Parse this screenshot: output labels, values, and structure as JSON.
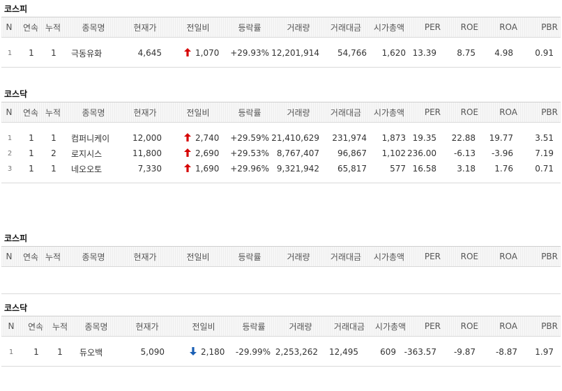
{
  "sections": [
    {
      "title": "코스피",
      "headers": [
        "N",
        "연속",
        "누적",
        "종목명",
        "현재가",
        "전일비",
        "등락률",
        "거래량",
        "거래대금",
        "시가총액",
        "PER",
        "ROE",
        "ROA",
        "PBR"
      ],
      "rows": [
        {
          "n": "1",
          "streak": "1",
          "cumulative": "1",
          "name": "극동유화",
          "price": "4,645",
          "direction": "up",
          "change": "1,070",
          "rate": "+29.93%",
          "volume": "12,201,914",
          "amount": "54,766",
          "market_cap": "1,620",
          "per": "13.39",
          "roe": "8.75",
          "roa": "4.98",
          "pbr": "0.91"
        }
      ]
    },
    {
      "title": "코스닥",
      "headers": [
        "N",
        "연속",
        "누적",
        "종목명",
        "현재가",
        "전일비",
        "등락률",
        "거래량",
        "거래대금",
        "시가총액",
        "PER",
        "ROE",
        "ROA",
        "PBR"
      ],
      "rows": [
        {
          "n": "1",
          "streak": "1",
          "cumulative": "1",
          "name": "컴퍼니케이",
          "price": "12,000",
          "direction": "up",
          "change": "2,740",
          "rate": "+29.59%",
          "volume": "21,410,629",
          "amount": "231,974",
          "market_cap": "1,873",
          "per": "19.35",
          "roe": "22.88",
          "roa": "19.77",
          "pbr": "3.51"
        },
        {
          "n": "2",
          "streak": "1",
          "cumulative": "2",
          "name": "로지시스",
          "price": "11,800",
          "direction": "up",
          "change": "2,690",
          "rate": "+29.53%",
          "volume": "8,767,407",
          "amount": "96,867",
          "market_cap": "1,102",
          "per": "236.00",
          "roe": "-6.13",
          "roa": "-3.96",
          "pbr": "7.19"
        },
        {
          "n": "3",
          "streak": "1",
          "cumulative": "1",
          "name": "네오오토",
          "price": "7,330",
          "direction": "up",
          "change": "1,690",
          "rate": "+29.96%",
          "volume": "9,321,942",
          "amount": "65,817",
          "market_cap": "577",
          "per": "16.58",
          "roe": "3.18",
          "roa": "1.76",
          "pbr": "0.71"
        }
      ]
    },
    {
      "title": "코스피",
      "headers": [
        "N",
        "연속",
        "누적",
        "종목명",
        "현재가",
        "전일비",
        "등락률",
        "거래량",
        "거래대금",
        "시가총액",
        "PER",
        "ROE",
        "ROA",
        "PBR"
      ],
      "rows": []
    },
    {
      "title": "코스닥",
      "headers": [
        "N",
        "연속",
        "누적",
        "종목명",
        "현재가",
        "전일비",
        "등락률",
        "거래량",
        "거래대금",
        "시가총액",
        "PER",
        "ROE",
        "ROA",
        "PBR"
      ],
      "rows": [
        {
          "n": "1",
          "streak": "1",
          "cumulative": "1",
          "name": "듀오백",
          "price": "5,090",
          "direction": "down",
          "change": "2,180",
          "rate": "-29.99%",
          "volume": "2,253,262",
          "amount": "12,495",
          "market_cap": "609",
          "per": "-363.57",
          "roe": "-9.87",
          "roa": "-8.87",
          "pbr": "1.97"
        }
      ]
    }
  ],
  "colors": {
    "up": "#d60000",
    "down": "#1a5fb4"
  },
  "icons": {
    "up": "arrow-up-icon",
    "down": "arrow-down-icon"
  }
}
